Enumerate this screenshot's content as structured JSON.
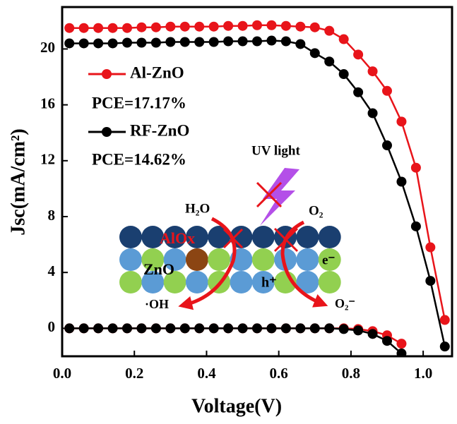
{
  "chart_data": {
    "type": "line",
    "y_label": "Jsc(mA/cm²)",
    "x_label": "Voltage(V)",
    "x": [
      0.02,
      0.06,
      0.1,
      0.14,
      0.18,
      0.22,
      0.26,
      0.3,
      0.34,
      0.38,
      0.42,
      0.46,
      0.5,
      0.54,
      0.58,
      0.62,
      0.66,
      0.7,
      0.74,
      0.78,
      0.82,
      0.86,
      0.9,
      0.94,
      0.98,
      1.02,
      1.06
    ],
    "series": [
      {
        "name": "Al-ZnO",
        "color": "#e8141a",
        "values": [
          21.5,
          21.5,
          21.5,
          21.5,
          21.5,
          21.55,
          21.55,
          21.6,
          21.6,
          21.6,
          21.6,
          21.65,
          21.65,
          21.7,
          21.7,
          21.65,
          21.6,
          21.55,
          21.3,
          20.7,
          19.6,
          18.4,
          17.0,
          14.8,
          11.5,
          5.8,
          0.6
        ]
      },
      {
        "name": "RF-ZnO",
        "color": "#000000",
        "values": [
          20.4,
          20.4,
          20.4,
          20.4,
          20.45,
          20.45,
          20.45,
          20.5,
          20.5,
          20.5,
          20.5,
          20.55,
          20.55,
          20.55,
          20.6,
          20.55,
          20.35,
          19.7,
          19.1,
          18.2,
          16.9,
          15.4,
          13.1,
          10.5,
          7.3,
          3.4,
          -1.3
        ]
      },
      {
        "color": "#e8141a",
        "values": [
          0,
          0,
          0,
          0,
          0,
          0,
          0,
          0,
          0,
          0,
          0,
          0,
          0,
          0,
          0,
          0,
          0,
          0,
          0,
          0,
          -0.05,
          -0.2,
          -0.5,
          -1.1,
          null,
          null,
          null
        ]
      },
      {
        "color": "#000000",
        "values": [
          0,
          0,
          0,
          0,
          0,
          0,
          0,
          0,
          0,
          0,
          0,
          0,
          0,
          0,
          0,
          0,
          0,
          0,
          0,
          -0.05,
          -0.15,
          -0.4,
          -0.9,
          -1.8,
          null,
          null,
          null
        ]
      }
    ],
    "annotations": [
      "PCE=17.17%",
      "PCE=14.62%"
    ],
    "inset_labels": {
      "uv": "UV light",
      "h2o": "H₂O",
      "o2": "O₂",
      "alox": "AlOx",
      "zno": "ZnO",
      "electron": "e⁻",
      "hole": "h⁺",
      "oh": "·OH",
      "superoxide": "O₂⁻"
    },
    "xlim": [
      0,
      1.08
    ],
    "ylim": [
      -2,
      23
    ],
    "xticks": [
      {
        "value": 0,
        "label": "0.0"
      },
      0.2,
      0.4,
      0.6,
      0.8,
      {
        "value": 1,
        "label": "1.0"
      }
    ],
    "yticks": [
      0,
      4,
      8,
      12,
      16,
      20
    ],
    "grid": false
  }
}
